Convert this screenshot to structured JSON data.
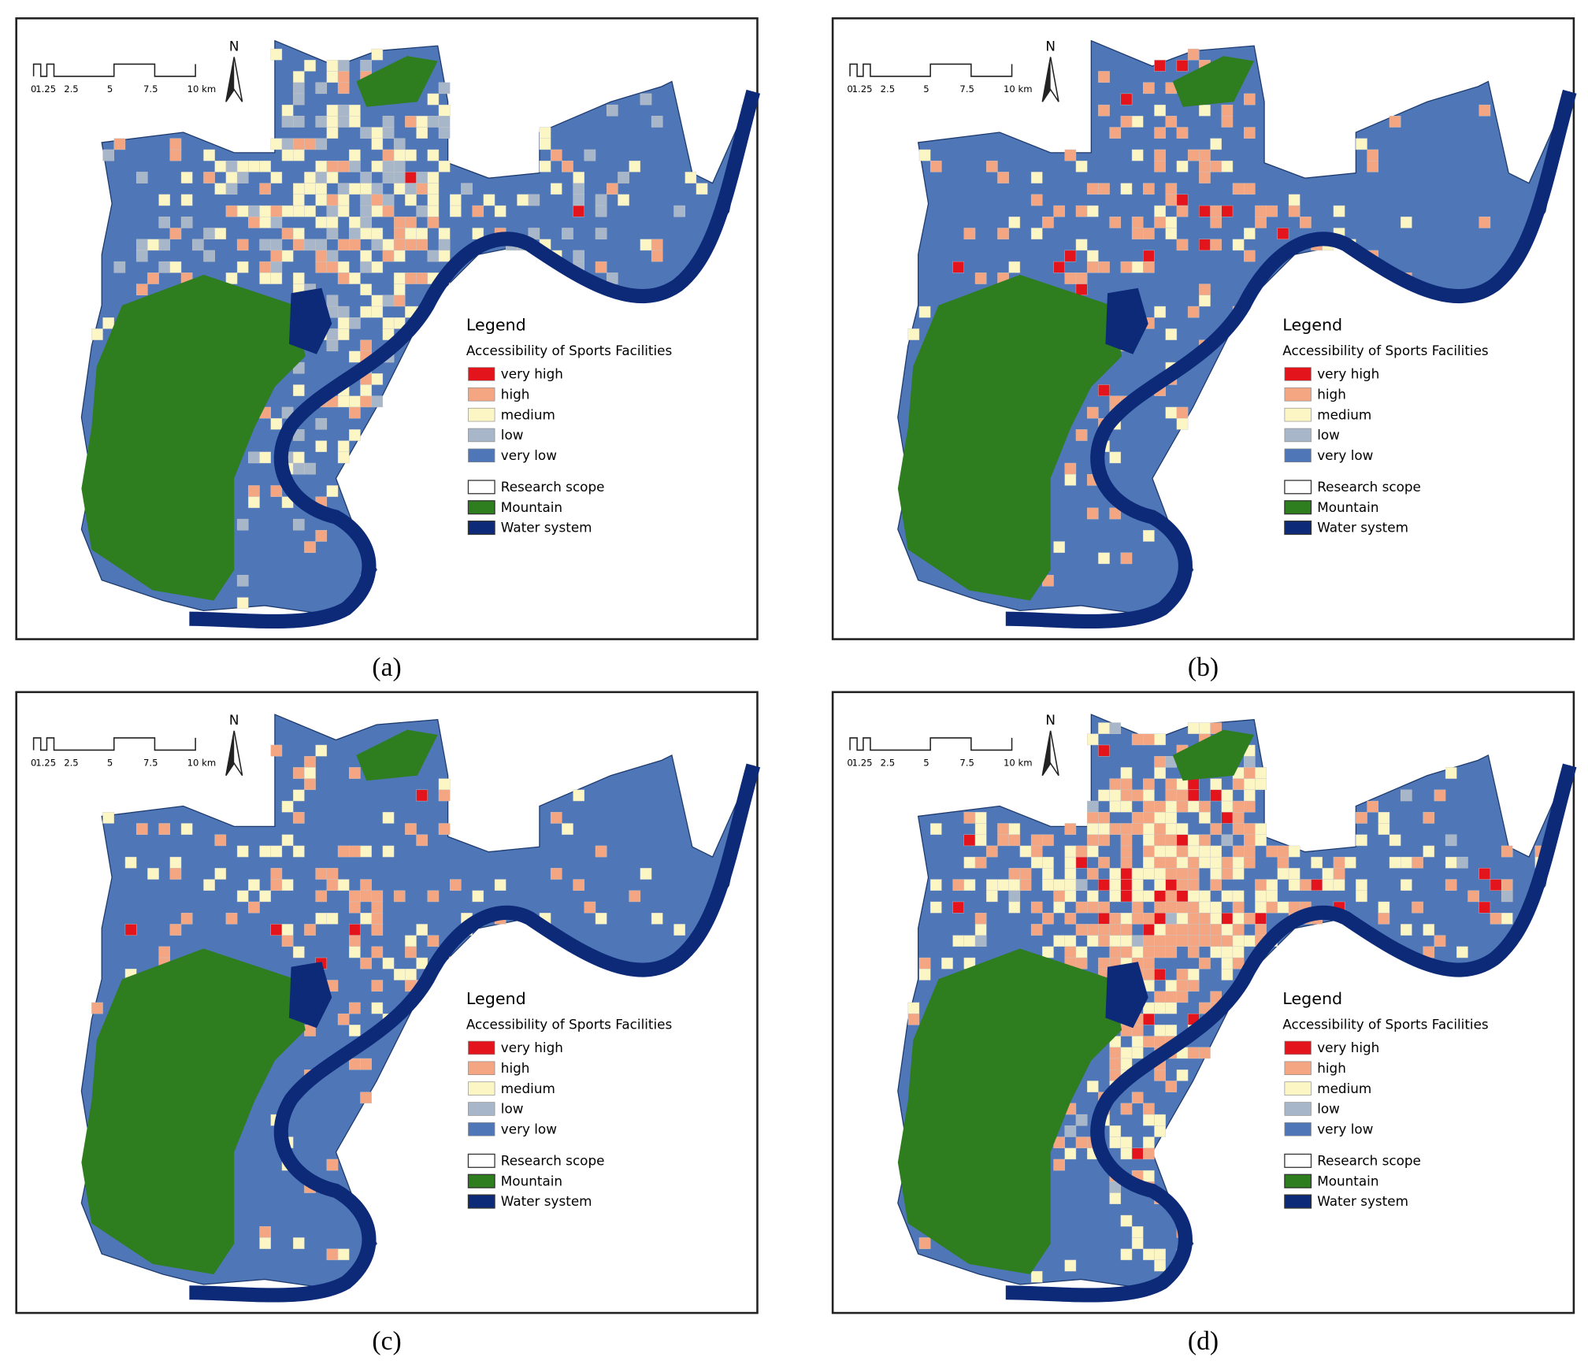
{
  "panels": [
    {
      "caption": "(a)"
    },
    {
      "caption": "(b)"
    },
    {
      "caption": "(c)"
    },
    {
      "caption": "(d)"
    }
  ],
  "legend": {
    "title": "Legend",
    "subtitle": "Accessibility of Sports Facilities",
    "classes": [
      {
        "label": "very high",
        "color": "#e3141b"
      },
      {
        "label": "high",
        "color": "#f4a582"
      },
      {
        "label": "medium",
        "color": "#fcf6c4"
      },
      {
        "label": "low",
        "color": "#a7b6c8"
      },
      {
        "label": "very low",
        "color": "#4f77b8"
      }
    ],
    "others": [
      {
        "label": "Research scope",
        "color": "#ffffff"
      },
      {
        "label": "Mountain",
        "color": "#2e7d1e"
      },
      {
        "label": "Water system",
        "color": "#0d2a78"
      }
    ]
  },
  "scale_bar": {
    "labels": [
      "0",
      "1.25",
      "2.5",
      "5",
      "7.5",
      "10 km"
    ]
  },
  "north": "N"
}
